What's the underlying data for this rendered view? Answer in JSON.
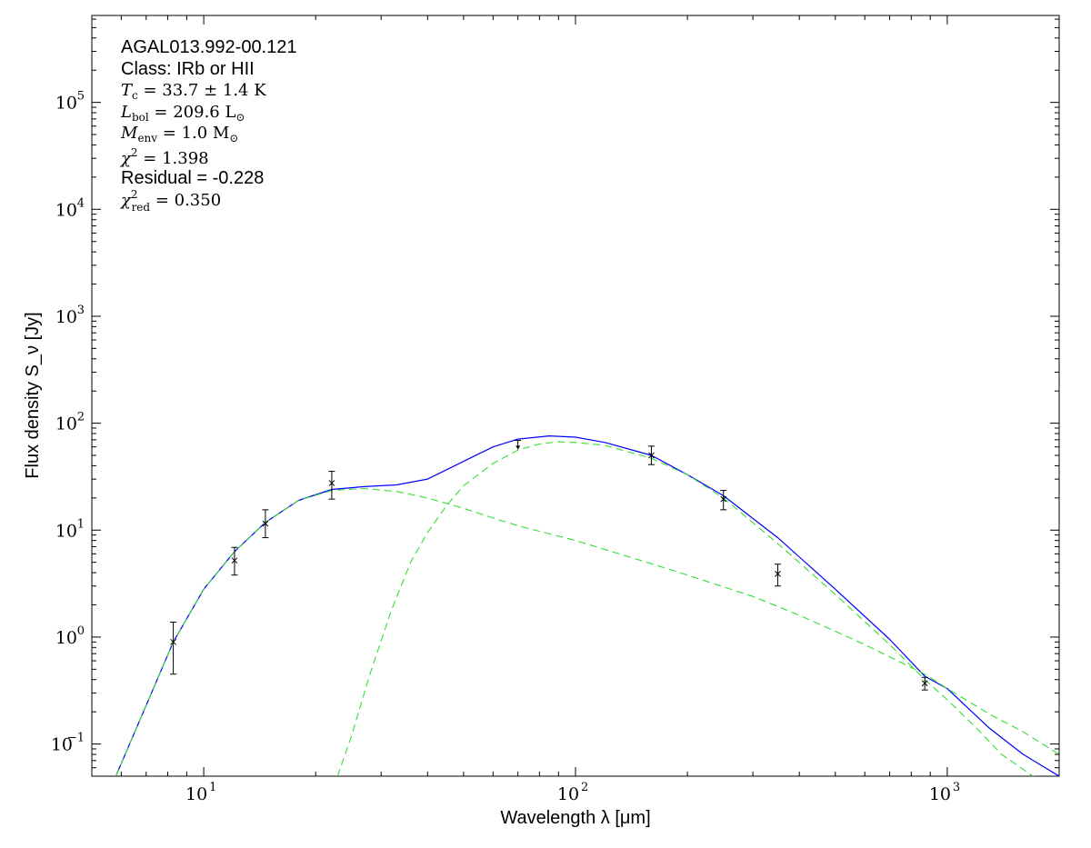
{
  "chart_data": {
    "type": "scatter",
    "xlabel": "Wavelength λ [μm]",
    "ylabel": "Flux density S_ν [Jy]",
    "xscale": "log",
    "yscale": "log",
    "xlim": [
      5,
      2000
    ],
    "ylim": [
      0.05,
      650000
    ],
    "x_ticks": [
      {
        "base": "10",
        "exp": "1",
        "value": 10
      },
      {
        "base": "10",
        "exp": "2",
        "value": 100
      },
      {
        "base": "10",
        "exp": "3",
        "value": 1000
      }
    ],
    "y_ticks": [
      {
        "base": "10",
        "exp": "−1",
        "value": 0.1
      },
      {
        "base": "10",
        "exp": "0",
        "value": 1
      },
      {
        "base": "10",
        "exp": "1",
        "value": 10
      },
      {
        "base": "10",
        "exp": "2",
        "value": 100
      },
      {
        "base": "10",
        "exp": "3",
        "value": 1000
      },
      {
        "base": "10",
        "exp": "4",
        "value": 10000
      },
      {
        "base": "10",
        "exp": "5",
        "value": 100000
      }
    ],
    "grid": false,
    "points": [
      {
        "x": 8.28,
        "y": 0.9,
        "ylo": 0.45,
        "yhi": 1.38,
        "type": "detection"
      },
      {
        "x": 12.1,
        "y": 5.2,
        "ylo": 3.8,
        "yhi": 6.9,
        "type": "detection"
      },
      {
        "x": 14.65,
        "y": 11.5,
        "ylo": 8.5,
        "yhi": 15.5,
        "type": "detection"
      },
      {
        "x": 22.1,
        "y": 27.5,
        "ylo": 19.5,
        "yhi": 35.5,
        "type": "detection"
      },
      {
        "x": 70,
        "y": 65,
        "ylo": 57,
        "yhi": 69,
        "type": "upper-limit"
      },
      {
        "x": 160,
        "y": 50,
        "ylo": 41,
        "yhi": 61,
        "type": "detection"
      },
      {
        "x": 250,
        "y": 19.5,
        "ylo": 15.5,
        "yhi": 23.5,
        "type": "detection"
      },
      {
        "x": 350,
        "y": 3.9,
        "ylo": 3.0,
        "yhi": 4.8,
        "type": "detection"
      },
      {
        "x": 870,
        "y": 0.37,
        "ylo": 0.32,
        "yhi": 0.42,
        "type": "detection"
      }
    ],
    "series": [
      {
        "style": "solid",
        "color": "#0000ff",
        "x": [
          5.8,
          7,
          8.28,
          10,
          12.1,
          14.65,
          18,
          22.1,
          27,
          33,
          40,
          50,
          60,
          70,
          85,
          100,
          120,
          160,
          200,
          250,
          350,
          500,
          700,
          870,
          1000,
          1300,
          1600,
          2000
        ],
        "y": [
          0.05,
          0.23,
          0.9,
          2.8,
          6.3,
          11.8,
          19,
          24,
          25.5,
          26.5,
          30,
          44,
          60,
          71,
          76,
          74,
          66,
          50,
          33,
          21,
          8.5,
          2.8,
          0.95,
          0.43,
          0.33,
          0.14,
          0.08,
          0.05
        ]
      },
      {
        "style": "dashed",
        "color": "#33dd33",
        "x": [
          5.8,
          7,
          8.28,
          10,
          12.1,
          14.65,
          18,
          22.1,
          27,
          33,
          40,
          50,
          60,
          70,
          100,
          150,
          200,
          300,
          400,
          600,
          870,
          1000,
          1300,
          1600,
          2000
        ],
        "y": [
          0.05,
          0.23,
          0.9,
          2.8,
          6.3,
          11.8,
          19,
          23.5,
          24.5,
          23,
          20,
          16,
          13,
          11,
          8,
          5.2,
          3.8,
          2.4,
          1.6,
          0.85,
          0.45,
          0.33,
          0.19,
          0.13,
          0.08
        ]
      },
      {
        "style": "dashed",
        "color": "#33dd33",
        "x": [
          22.9,
          25,
          28,
          32,
          36,
          40,
          45,
          50,
          60,
          70,
          80,
          90,
          100,
          120,
          160,
          200,
          250,
          350,
          500,
          700,
          870,
          1000,
          1200,
          1400,
          1700,
          2000
        ],
        "y": [
          0.05,
          0.12,
          0.45,
          1.8,
          5,
          9.5,
          17,
          26,
          42,
          56,
          64,
          67,
          66,
          62,
          47,
          33,
          20,
          7.5,
          2.5,
          0.85,
          0.4,
          0.26,
          0.14,
          0.08,
          0.05,
          0.035
        ]
      }
    ],
    "annotations": {
      "source": "AGAL013.992-00.121",
      "class_line": "Class: IRb or HII",
      "tc_label": "T",
      "tc_sub": "c",
      "tc_value": " = 33.7 ± 1.4 K",
      "lbol_label": "L",
      "lbol_sub": "bol",
      "lbol_value": " = 209.6 L",
      "lbol_unit_sub": "⊙",
      "menv_label": "M",
      "menv_sub": "env",
      "menv_value": " = 1.0 M",
      "menv_unit_sub": "⊙",
      "chi2_label": "χ",
      "chi2_sup": "2",
      "chi2_value": " = 1.398",
      "residual": "Residual = -0.228",
      "chi2red_label": "χ",
      "chi2red_sup": "2",
      "chi2red_sub": "red",
      "chi2red_value": " = 0.350"
    }
  }
}
